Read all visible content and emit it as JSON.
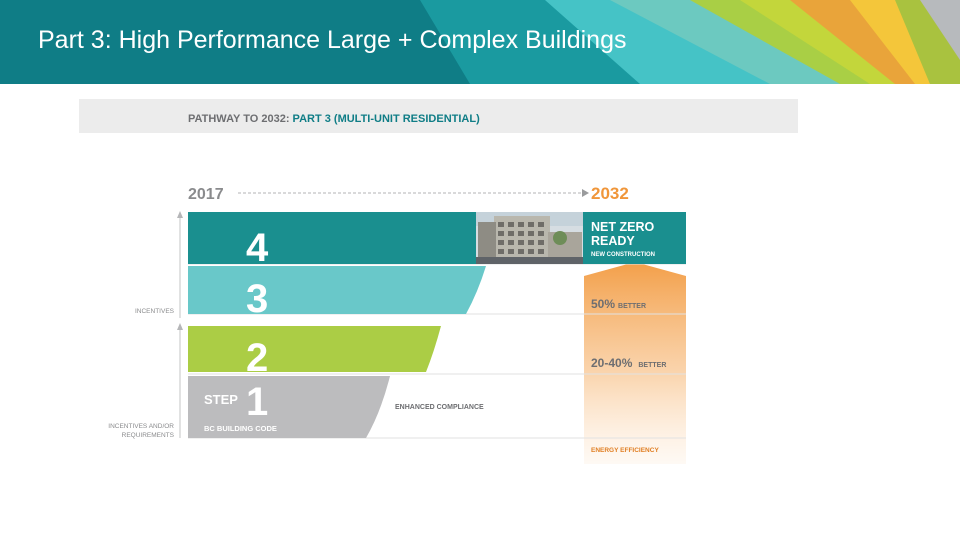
{
  "slide": {
    "title": "Part 3: High Performance Large + Complex Buildings"
  },
  "figure": {
    "header": {
      "prefix": "PATHWAY TO 2032: ",
      "emphasis": "PART 3 (MULTI-UNIT RESIDENTIAL)"
    },
    "timeline": {
      "start": "2017",
      "end": "2032"
    },
    "side_labels": {
      "incentives": "INCENTIVES",
      "incentives_req_line1": "INCENTIVES AND/OR",
      "incentives_req_line2": "REQUIREMENTS"
    },
    "steps": [
      {
        "number": "4",
        "color": "#1a8f8f"
      },
      {
        "number": "3",
        "color": "#69c8c9"
      },
      {
        "number": "2",
        "color": "#abcd45"
      },
      {
        "number": "1",
        "color": "#bcbcbe"
      }
    ],
    "step_word": "STEP",
    "code_label": "BC BUILDING CODE",
    "enhanced": "ENHANCED COMPLIANCE",
    "targets": {
      "nz_line1": "NET ZERO",
      "nz_line2": "READY",
      "nz_sub": "NEW CONSTRUCTION",
      "t50_value": "50%",
      "t50_word": "BETTER",
      "t20_value": "20-40%",
      "t20_word": "BETTER",
      "efficiency": "ENERGY EFFICIENCY"
    },
    "colors": {
      "banner_teal": "#0f7d86",
      "orange": "#f0963a",
      "gray_text": "#6d6e71",
      "header_bg": "#ececec"
    }
  }
}
